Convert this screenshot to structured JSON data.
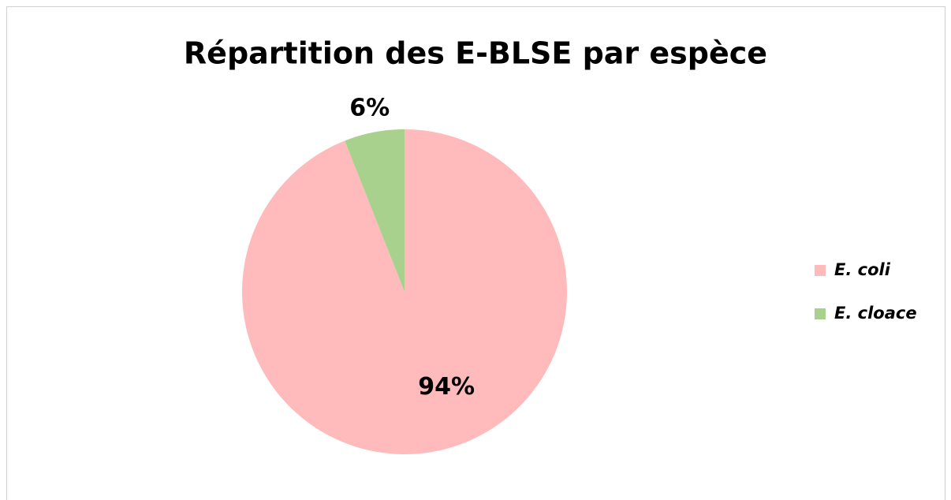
{
  "chart_data": {
    "type": "pie",
    "title": "Répartition des E-BLSE par espèce",
    "categories": [
      "E. coli",
      "E. cloace"
    ],
    "values": [
      94,
      6
    ],
    "value_labels": [
      "94%",
      "6%"
    ],
    "colors": [
      "#ffbbbb",
      "#a9d18e"
    ],
    "legend": "right"
  }
}
